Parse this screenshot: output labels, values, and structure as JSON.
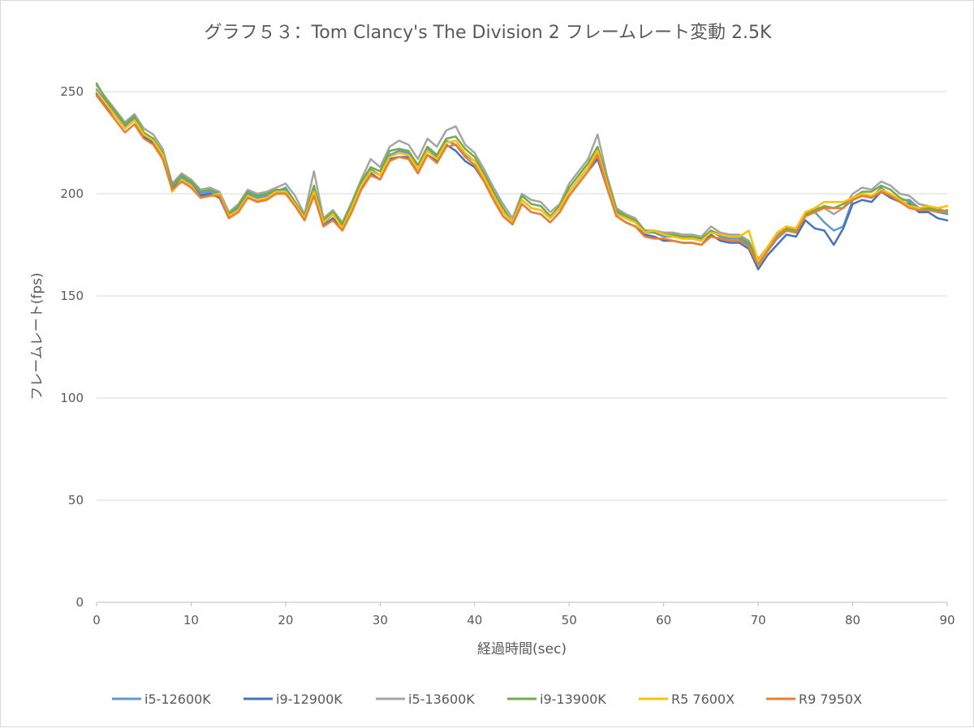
{
  "chart_data": {
    "type": "line",
    "title": "グラフ５３：Tom Clancy's The Division 2 フレームレート変動 2.5K",
    "xlabel": "経過時間(sec)",
    "ylabel": "フレームレート(fps)",
    "xlim": [
      0,
      90
    ],
    "ylim": [
      0,
      250
    ],
    "xticks": [
      0,
      10,
      20,
      30,
      40,
      50,
      60,
      70,
      80,
      90
    ],
    "yticks": [
      0,
      50,
      100,
      150,
      200,
      250
    ],
    "grid": "horizontal",
    "legend_position": "bottom",
    "x": [
      0,
      1,
      2,
      3,
      4,
      5,
      6,
      7,
      8,
      9,
      10,
      11,
      12,
      13,
      14,
      15,
      16,
      17,
      18,
      19,
      20,
      21,
      22,
      23,
      24,
      25,
      26,
      27,
      28,
      29,
      30,
      31,
      32,
      33,
      34,
      35,
      36,
      37,
      38,
      39,
      40,
      41,
      42,
      43,
      44,
      45,
      46,
      47,
      48,
      49,
      50,
      51,
      52,
      53,
      54,
      55,
      56,
      57,
      58,
      59,
      60,
      61,
      62,
      63,
      64,
      65,
      66,
      67,
      68,
      69,
      70,
      71,
      72,
      73,
      74,
      75,
      76,
      77,
      78,
      79,
      80,
      81,
      82,
      83,
      84,
      85,
      86,
      87,
      88,
      89,
      90
    ],
    "series": [
      {
        "name": "i5-12600K",
        "color": "#5b9bd5",
        "values": [
          251,
          245,
          239,
          233,
          237,
          229,
          227,
          220,
          203,
          208,
          205,
          200,
          201,
          199,
          189,
          193,
          200,
          198,
          199,
          201,
          203,
          196,
          188,
          202,
          185,
          190,
          184,
          194,
          205,
          212,
          209,
          219,
          221,
          220,
          212,
          222,
          218,
          226,
          224,
          219,
          216,
          208,
          199,
          191,
          186,
          197,
          193,
          192,
          188,
          193,
          201,
          207,
          213,
          220,
          205,
          191,
          188,
          186,
          181,
          181,
          179,
          179,
          178,
          178,
          177,
          182,
          179,
          178,
          178,
          175,
          166,
          172,
          178,
          182,
          181,
          189,
          191,
          186,
          182,
          184,
          197,
          199,
          198,
          203,
          199,
          197,
          197,
          193,
          193,
          191,
          190
        ]
      },
      {
        "name": "i9-12900K",
        "color": "#4472c4",
        "values": [
          249,
          243,
          238,
          232,
          236,
          228,
          225,
          218,
          202,
          207,
          204,
          199,
          200,
          198,
          188,
          192,
          199,
          196,
          198,
          200,
          201,
          195,
          187,
          200,
          184,
          188,
          183,
          192,
          203,
          210,
          207,
          217,
          218,
          218,
          210,
          219,
          216,
          224,
          221,
          216,
          213,
          206,
          197,
          189,
          185,
          195,
          191,
          190,
          186,
          191,
          199,
          205,
          211,
          217,
          203,
          189,
          186,
          184,
          180,
          179,
          177,
          177,
          176,
          176,
          175,
          180,
          177,
          176,
          176,
          173,
          163,
          170,
          175,
          180,
          179,
          187,
          183,
          182,
          175,
          183,
          195,
          197,
          196,
          201,
          198,
          196,
          195,
          191,
          191,
          188,
          187
        ]
      },
      {
        "name": "i5-13600K",
        "color": "#a5a5a5",
        "values": [
          253,
          247,
          241,
          235,
          239,
          232,
          229,
          222,
          205,
          210,
          207,
          202,
          203,
          201,
          191,
          195,
          202,
          200,
          201,
          203,
          205,
          199,
          190,
          211,
          188,
          192,
          186,
          196,
          207,
          217,
          213,
          223,
          226,
          224,
          217,
          227,
          223,
          231,
          233,
          224,
          220,
          212,
          203,
          195,
          188,
          200,
          197,
          196,
          191,
          195,
          205,
          211,
          217,
          229,
          209,
          193,
          190,
          188,
          182,
          182,
          181,
          181,
          180,
          180,
          179,
          184,
          181,
          180,
          180,
          177,
          168,
          174,
          180,
          184,
          183,
          191,
          193,
          193,
          190,
          193,
          200,
          203,
          202,
          206,
          204,
          200,
          199,
          195,
          194,
          193,
          191
        ]
      },
      {
        "name": "i9-13900K",
        "color": "#70ad47",
        "values": [
          254,
          246,
          240,
          234,
          238,
          230,
          227,
          220,
          204,
          209,
          206,
          201,
          202,
          200,
          190,
          194,
          201,
          199,
          200,
          202,
          202,
          196,
          189,
          204,
          187,
          191,
          185,
          195,
          206,
          213,
          211,
          221,
          222,
          221,
          214,
          223,
          219,
          227,
          228,
          222,
          218,
          210,
          201,
          193,
          186,
          199,
          195,
          194,
          189,
          194,
          203,
          209,
          215,
          223,
          207,
          192,
          189,
          187,
          182,
          181,
          180,
          180,
          179,
          179,
          178,
          182,
          180,
          179,
          179,
          176,
          167,
          173,
          179,
          183,
          182,
          190,
          192,
          194,
          193,
          195,
          198,
          201,
          201,
          204,
          202,
          198,
          196,
          192,
          193,
          192,
          191
        ]
      },
      {
        "name": "R5 7600X",
        "color": "#ffc000",
        "values": [
          250,
          244,
          238,
          232,
          236,
          229,
          226,
          219,
          201,
          207,
          204,
          198,
          199,
          200,
          189,
          192,
          199,
          197,
          198,
          201,
          201,
          195,
          188,
          201,
          186,
          190,
          183,
          193,
          204,
          211,
          209,
          218,
          220,
          219,
          212,
          221,
          217,
          225,
          226,
          220,
          216,
          208,
          199,
          191,
          186,
          197,
          193,
          192,
          188,
          193,
          201,
          207,
          213,
          221,
          205,
          190,
          188,
          186,
          181,
          182,
          180,
          179,
          178,
          178,
          177,
          181,
          180,
          179,
          179,
          182,
          167,
          174,
          181,
          184,
          183,
          191,
          193,
          196,
          196,
          196,
          198,
          200,
          199,
          202,
          200,
          197,
          194,
          193,
          194,
          193,
          194
        ]
      },
      {
        "name": "R9 7950X",
        "color": "#ed7d31",
        "values": [
          248,
          242,
          236,
          230,
          234,
          227,
          224,
          217,
          202,
          206,
          203,
          198,
          199,
          199,
          188,
          191,
          198,
          196,
          197,
          200,
          200,
          194,
          187,
          199,
          184,
          187,
          182,
          191,
          202,
          209,
          207,
          216,
          218,
          217,
          210,
          219,
          215,
          223,
          224,
          218,
          214,
          206,
          197,
          189,
          185,
          195,
          191,
          190,
          186,
          191,
          199,
          205,
          211,
          219,
          203,
          189,
          186,
          184,
          179,
          178,
          178,
          177,
          176,
          176,
          175,
          179,
          178,
          177,
          177,
          174,
          165,
          172,
          179,
          182,
          181,
          189,
          191,
          193,
          193,
          193,
          197,
          199,
          198,
          201,
          199,
          196,
          193,
          192,
          192,
          191,
          192
        ]
      }
    ]
  }
}
